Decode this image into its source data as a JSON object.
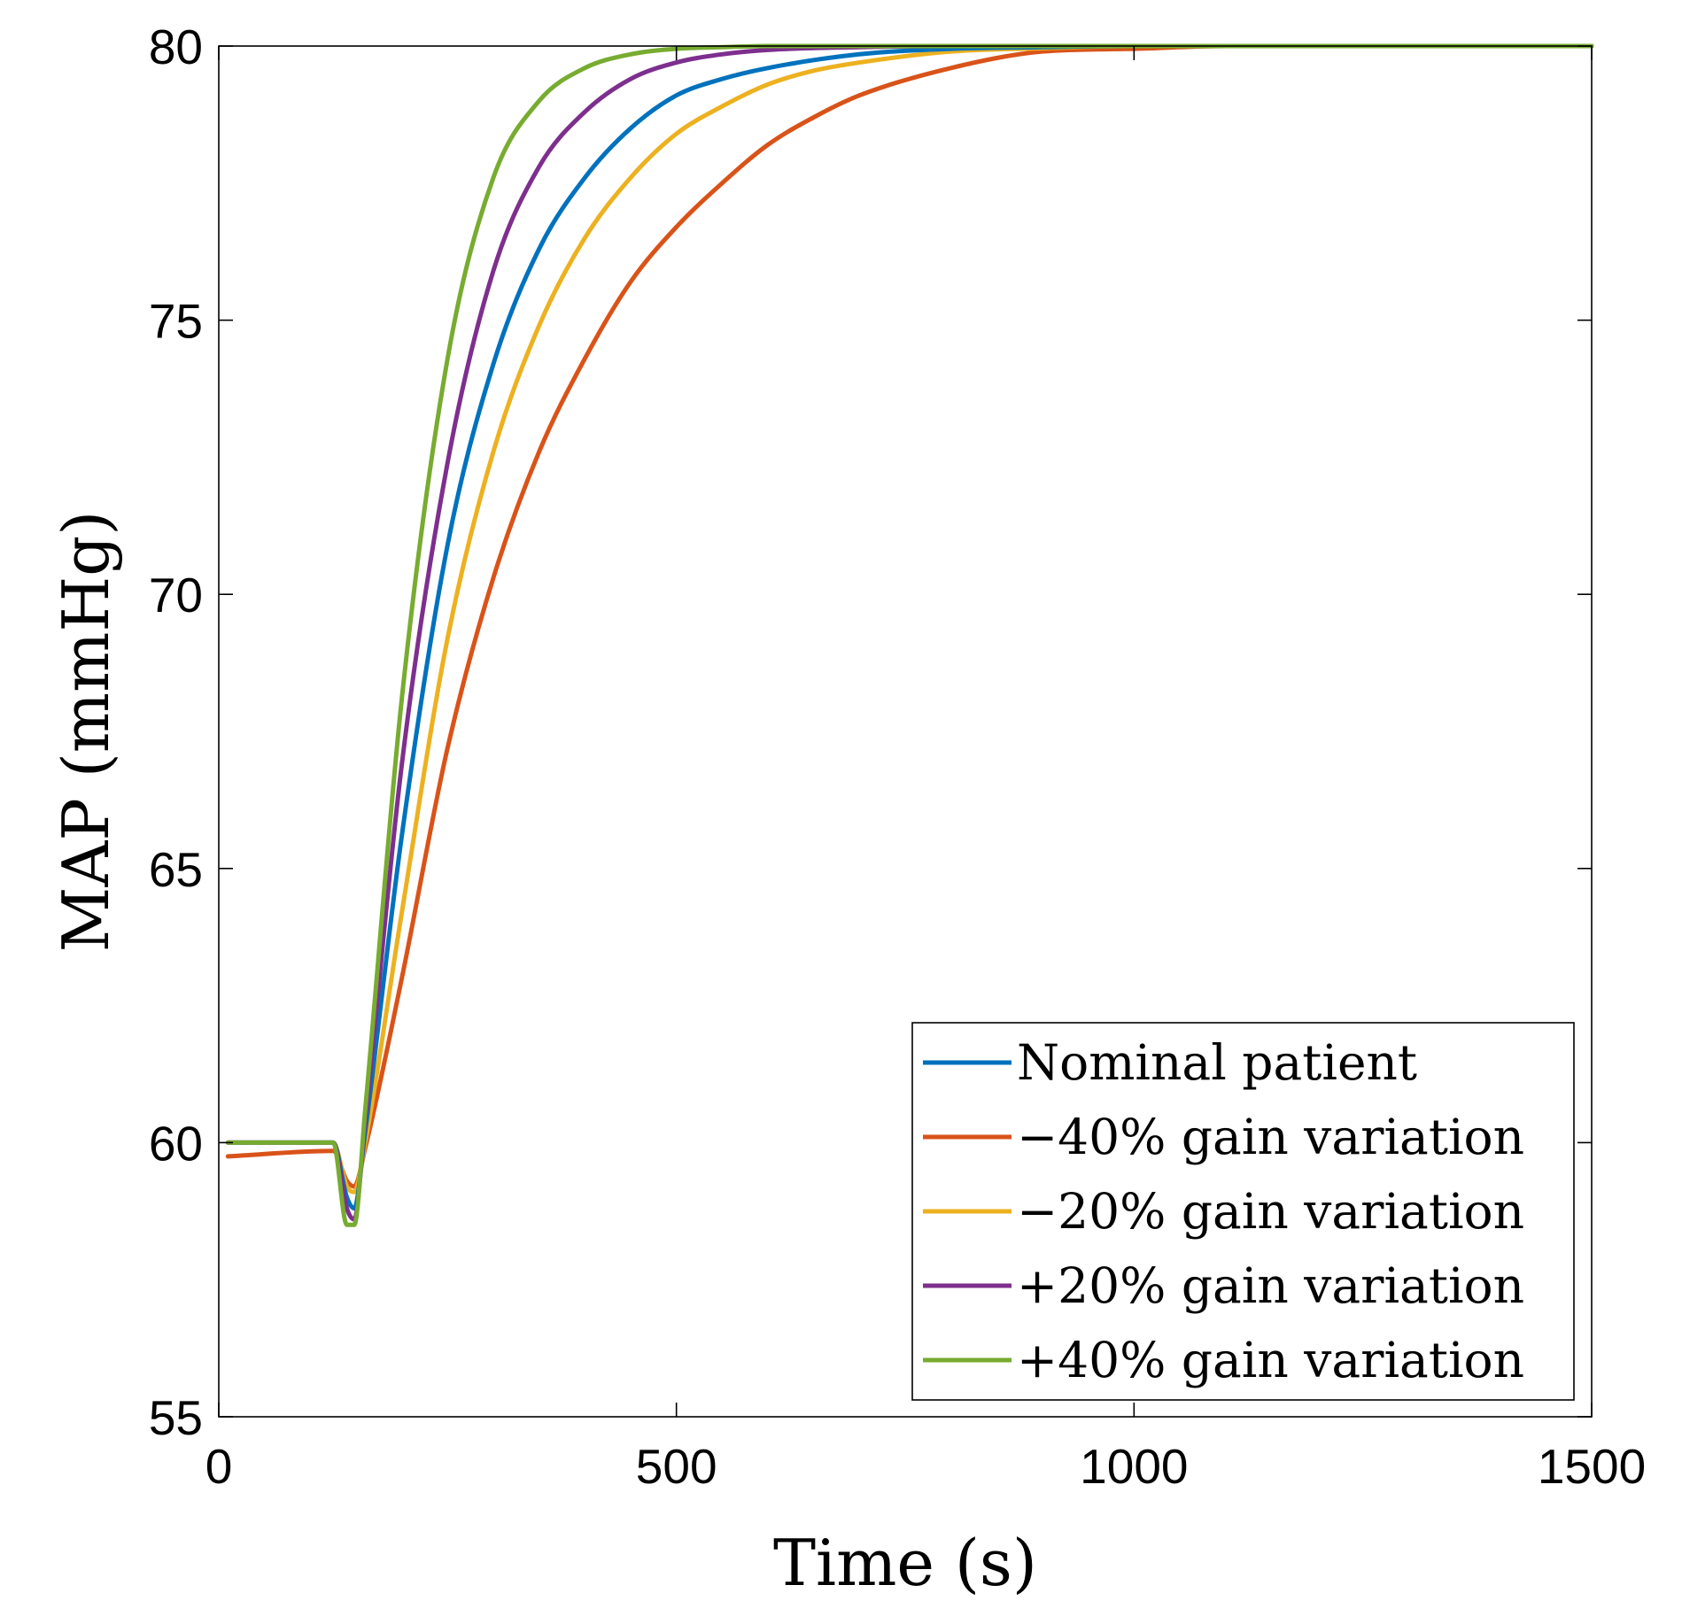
{
  "chart_data": {
    "type": "line",
    "xlabel": "Time (s)",
    "ylabel": "MAP (mmHg)",
    "xlim": [
      0,
      1500
    ],
    "ylim": [
      55,
      80
    ],
    "xticks": [
      0,
      500,
      1000,
      1500
    ],
    "yticks": [
      55,
      60,
      65,
      70,
      75,
      80
    ],
    "grid": false,
    "legend_position": "bottom-right",
    "series": [
      {
        "name": "Nominal patient",
        "color": "#0072BD",
        "x": [
          10,
          125,
          140,
          148,
          160,
          200,
          250,
          300,
          350,
          400,
          450,
          500,
          550,
          600,
          700,
          800,
          900,
          1000,
          1200,
          1500
        ],
        "y": [
          60.0,
          60.0,
          59.0,
          58.8,
          60.2,
          65.6,
          70.9,
          74.2,
          76.3,
          77.6,
          78.5,
          79.1,
          79.4,
          79.6,
          79.85,
          79.95,
          79.98,
          80.0,
          80.0,
          80.0
        ]
      },
      {
        "name": "−40% gain variation",
        "color": "#D95319",
        "x": [
          10,
          125,
          140,
          148,
          160,
          200,
          250,
          300,
          350,
          400,
          450,
          500,
          550,
          600,
          650,
          700,
          800,
          900,
          1000,
          1100,
          1200,
          1300,
          1400,
          1500
        ],
        "y": [
          59.75,
          59.85,
          59.3,
          59.2,
          59.9,
          63.0,
          67.2,
          70.3,
          72.6,
          74.3,
          75.7,
          76.7,
          77.5,
          78.2,
          78.7,
          79.1,
          79.6,
          79.9,
          79.95,
          80.0,
          80.0,
          80.0,
          80.0,
          80.0
        ]
      },
      {
        "name": "−20% gain variation",
        "color": "#EDB120",
        "x": [
          10,
          125,
          140,
          148,
          160,
          200,
          250,
          300,
          350,
          400,
          450,
          500,
          550,
          600,
          650,
          700,
          800,
          900,
          1000,
          1200,
          1500
        ],
        "y": [
          60.0,
          60.0,
          59.2,
          59.1,
          60.0,
          64.2,
          69.2,
          72.6,
          74.9,
          76.5,
          77.6,
          78.4,
          78.9,
          79.3,
          79.55,
          79.7,
          79.9,
          79.96,
          80.0,
          80.0,
          80.0
        ]
      },
      {
        "name": "+20% gain variation",
        "color": "#7E2F8E",
        "x": [
          10,
          125,
          140,
          148,
          160,
          200,
          250,
          300,
          350,
          400,
          450,
          500,
          550,
          600,
          700,
          800,
          1000,
          1500
        ],
        "y": [
          60.0,
          60.0,
          58.8,
          58.6,
          60.4,
          66.9,
          72.4,
          75.9,
          77.8,
          78.8,
          79.4,
          79.7,
          79.85,
          79.93,
          79.98,
          80.0,
          80.0,
          80.0
        ]
      },
      {
        "name": "+40% gain variation",
        "color": "#77AC30",
        "x": [
          10,
          125,
          140,
          148,
          160,
          200,
          250,
          300,
          350,
          400,
          450,
          500,
          550,
          600,
          700,
          800,
          1000,
          1500
        ],
        "y": [
          60.0,
          60.0,
          58.5,
          58.5,
          60.6,
          68.1,
          74.3,
          77.6,
          79.0,
          79.6,
          79.85,
          79.95,
          79.98,
          80.0,
          80.0,
          80.0,
          80.0,
          80.0
        ]
      }
    ]
  }
}
